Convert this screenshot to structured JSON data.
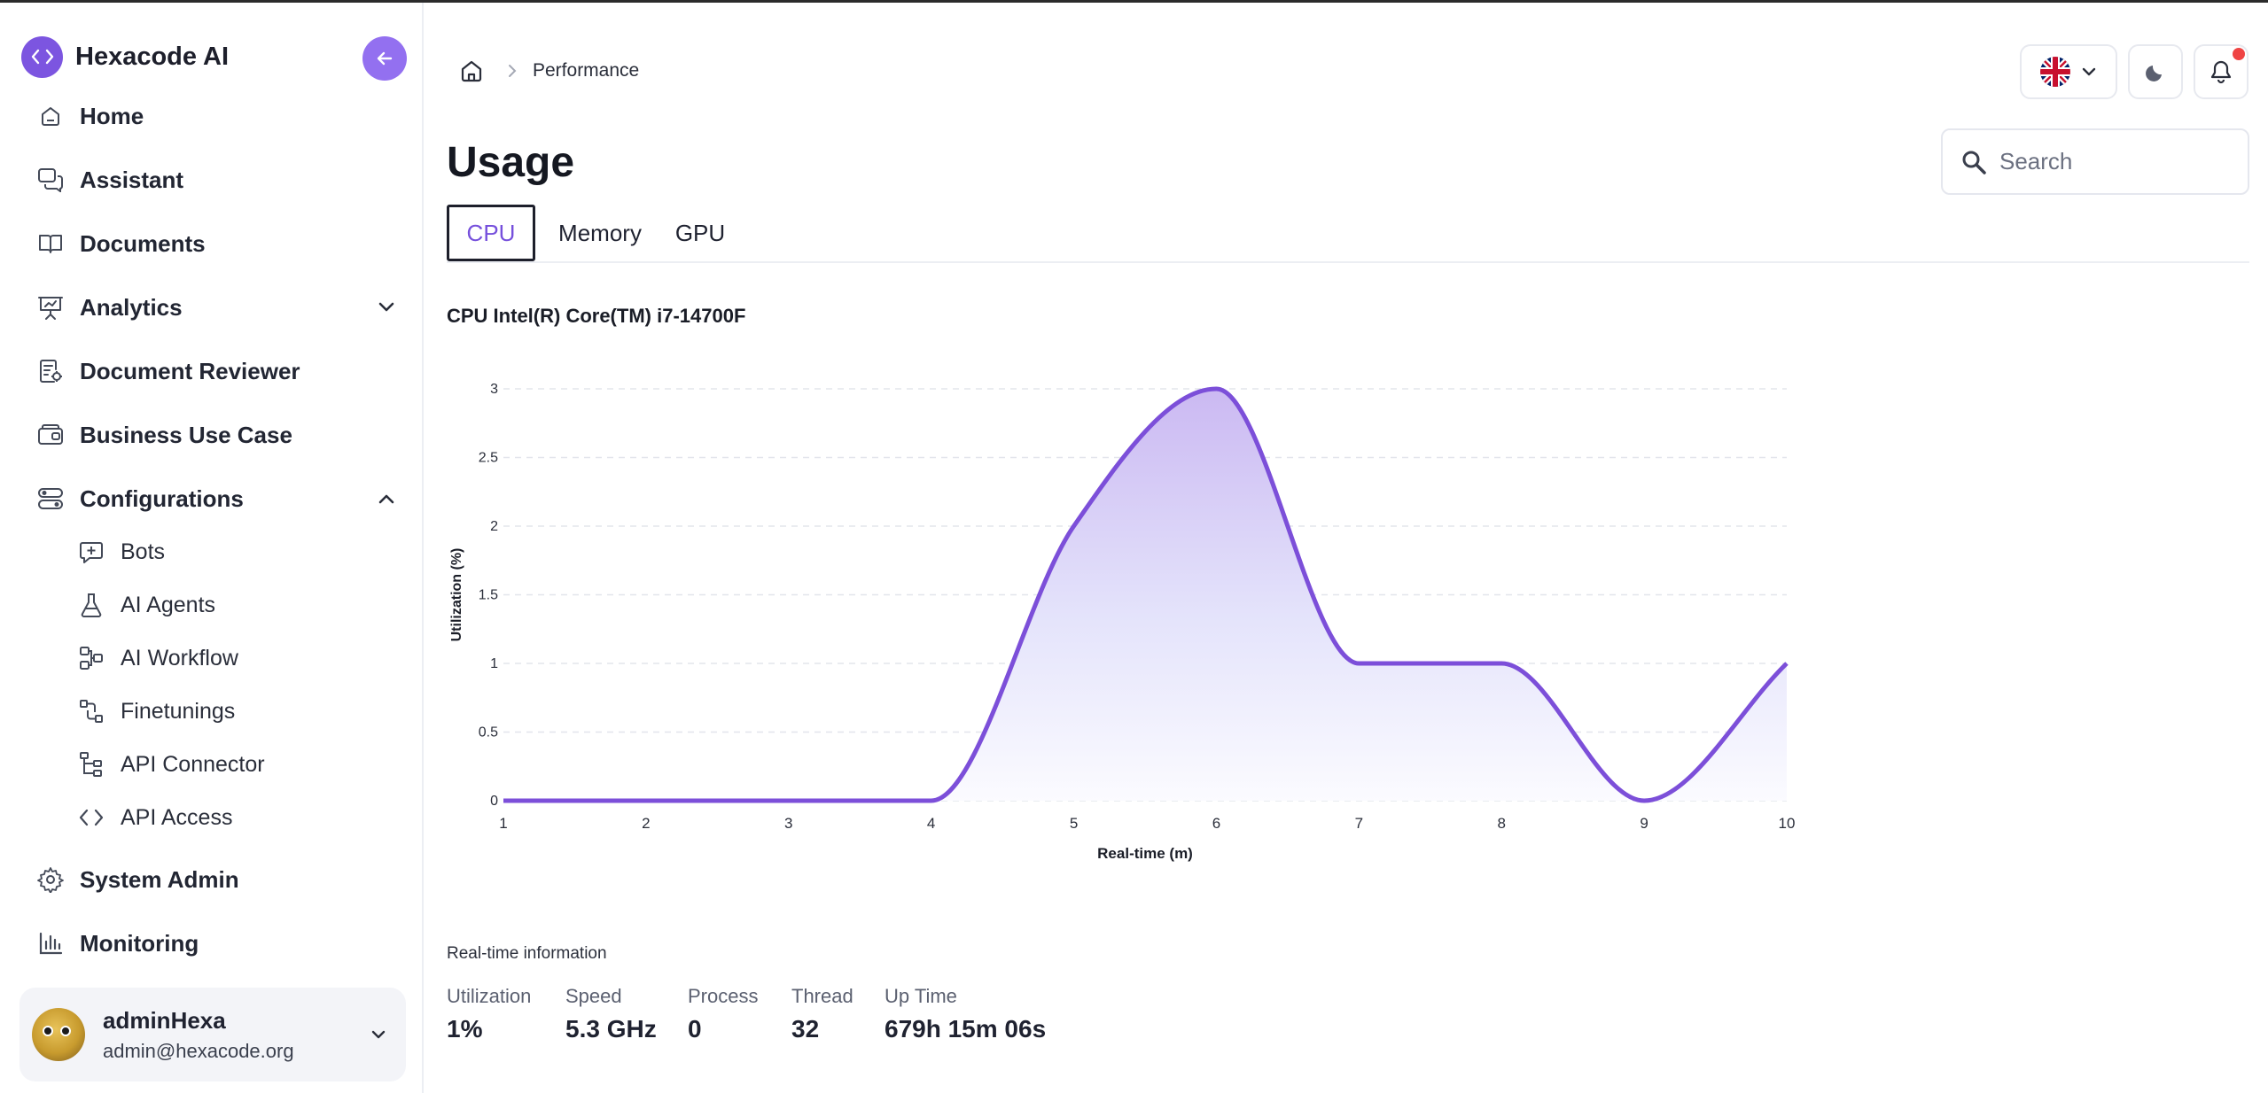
{
  "app": {
    "name": "Hexacode AI"
  },
  "sidebar": {
    "items": [
      {
        "label": "Home"
      },
      {
        "label": "Assistant"
      },
      {
        "label": "Documents"
      },
      {
        "label": "Analytics"
      },
      {
        "label": "Document Reviewer"
      },
      {
        "label": "Business Use Case"
      },
      {
        "label": "Configurations"
      },
      {
        "label": "System Admin"
      },
      {
        "label": "Monitoring"
      }
    ],
    "config_sub_items": [
      {
        "label": "Bots"
      },
      {
        "label": "AI Agents"
      },
      {
        "label": "AI Workflow"
      },
      {
        "label": "Finetunings"
      },
      {
        "label": "API Connector"
      },
      {
        "label": "API Access"
      }
    ]
  },
  "user": {
    "name": "adminHexa",
    "email": "admin@hexacode.org"
  },
  "breadcrumb": {
    "current": "Performance"
  },
  "page": {
    "title": "Usage"
  },
  "search": {
    "placeholder": "Search"
  },
  "tabs": [
    {
      "label": "CPU",
      "active": true
    },
    {
      "label": "Memory",
      "active": false
    },
    {
      "label": "GPU",
      "active": false
    }
  ],
  "cpu": {
    "name": "CPU Intel(R) Core(TM) i7-14700F"
  },
  "chart_data": {
    "type": "area",
    "x": [
      1,
      2,
      3,
      4,
      5,
      6,
      7,
      8,
      9,
      10
    ],
    "series": [
      {
        "values": [
          0,
          0,
          0,
          0,
          2,
          3,
          1,
          1,
          0,
          1
        ]
      }
    ],
    "xlabel": "Real-time (m)",
    "ylabel": "Utilization (%)",
    "xlim": [
      1,
      10
    ],
    "ylim": [
      0,
      3
    ],
    "yticks": [
      "0",
      "0.5",
      "1",
      "1.5",
      "2",
      "2.5",
      "3"
    ],
    "xticks": [
      "1",
      "2",
      "3",
      "4",
      "5",
      "6",
      "7",
      "8",
      "9",
      "10"
    ],
    "grid": true,
    "color": "#7c4fd9"
  },
  "realtime": {
    "title": "Real-time information",
    "stats": [
      {
        "label": "Utilization",
        "value": "1%"
      },
      {
        "label": "Speed",
        "value": "5.3 GHz"
      },
      {
        "label": "Process",
        "value": "0"
      },
      {
        "label": "Thread",
        "value": "32"
      },
      {
        "label": "Up Time",
        "value": "679h 15m 06s"
      }
    ]
  },
  "colors": {
    "accent": "#7c55e0",
    "accent_light": "#9370f0",
    "notification": "#ef4444"
  }
}
